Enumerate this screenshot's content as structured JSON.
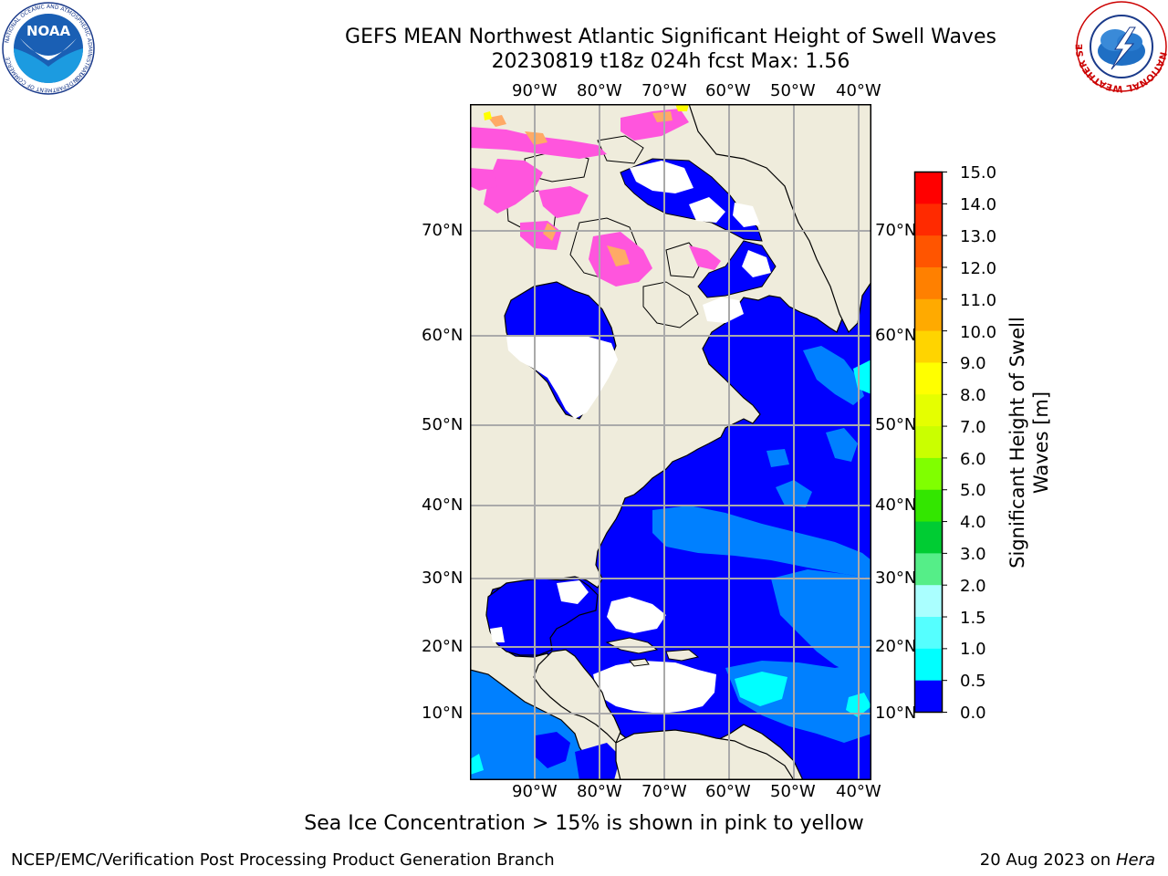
{
  "title": {
    "line1": "GEFS MEAN Northwest Atlantic Significant Height of Swell Waves",
    "line2": "20230819 t18z 024h fcst   Max: 1.56"
  },
  "map": {
    "lon_labels": [
      "90°W",
      "80°W",
      "70°W",
      "60°W",
      "50°W",
      "40°W"
    ],
    "lat_labels": [
      "70°N",
      "60°N",
      "50°N",
      "40°N",
      "30°N",
      "20°N",
      "10°N"
    ]
  },
  "colorbar": {
    "label": "Significant Height of Swell Waves [m]",
    "ticks": [
      "15.0",
      "14.0",
      "13.0",
      "12.0",
      "11.0",
      "10.0",
      "9.0",
      "8.0",
      "7.0",
      "6.0",
      "5.0",
      "4.0",
      "3.0",
      "2.0",
      "1.5",
      "1.0",
      "0.5",
      "0.0"
    ],
    "colors": [
      "#ff0000",
      "#ff2a00",
      "#ff5500",
      "#ff8000",
      "#ffaa00",
      "#ffd400",
      "#ffff00",
      "#e5ff00",
      "#caff00",
      "#80ff00",
      "#33e600",
      "#00cc33",
      "#55ee88",
      "#aaffff",
      "#55ffff",
      "#00ffff",
      "#0080ff",
      "#0000ff"
    ]
  },
  "colors": {
    "land": "#efecdc",
    "ocean_low": "#0000ff",
    "ocean_mid": "#0080ff",
    "ocean_high": "#00ffff",
    "ice_pink": "#ff55dd",
    "ice_orange": "#ffaa66",
    "grid": "#aaaaaa"
  },
  "logos": {
    "noaa_text": "NOAA",
    "noaa_ring": "NATIONAL OCEANIC AND ATMOSPHERIC ADMINISTRATION",
    "noaa_ring_bottom": "U.S. DEPARTMENT OF COMMERCE",
    "nws_ring": "NATIONAL WEATHER SERVICE"
  },
  "ice_note": "Sea Ice Concentration > 15% is shown in pink to yellow",
  "footer": {
    "left": "NCEP/EMC/Verification Post Processing Product Generation Branch",
    "right_prefix": "20 Aug 2023 on ",
    "right_host": "Hera"
  }
}
